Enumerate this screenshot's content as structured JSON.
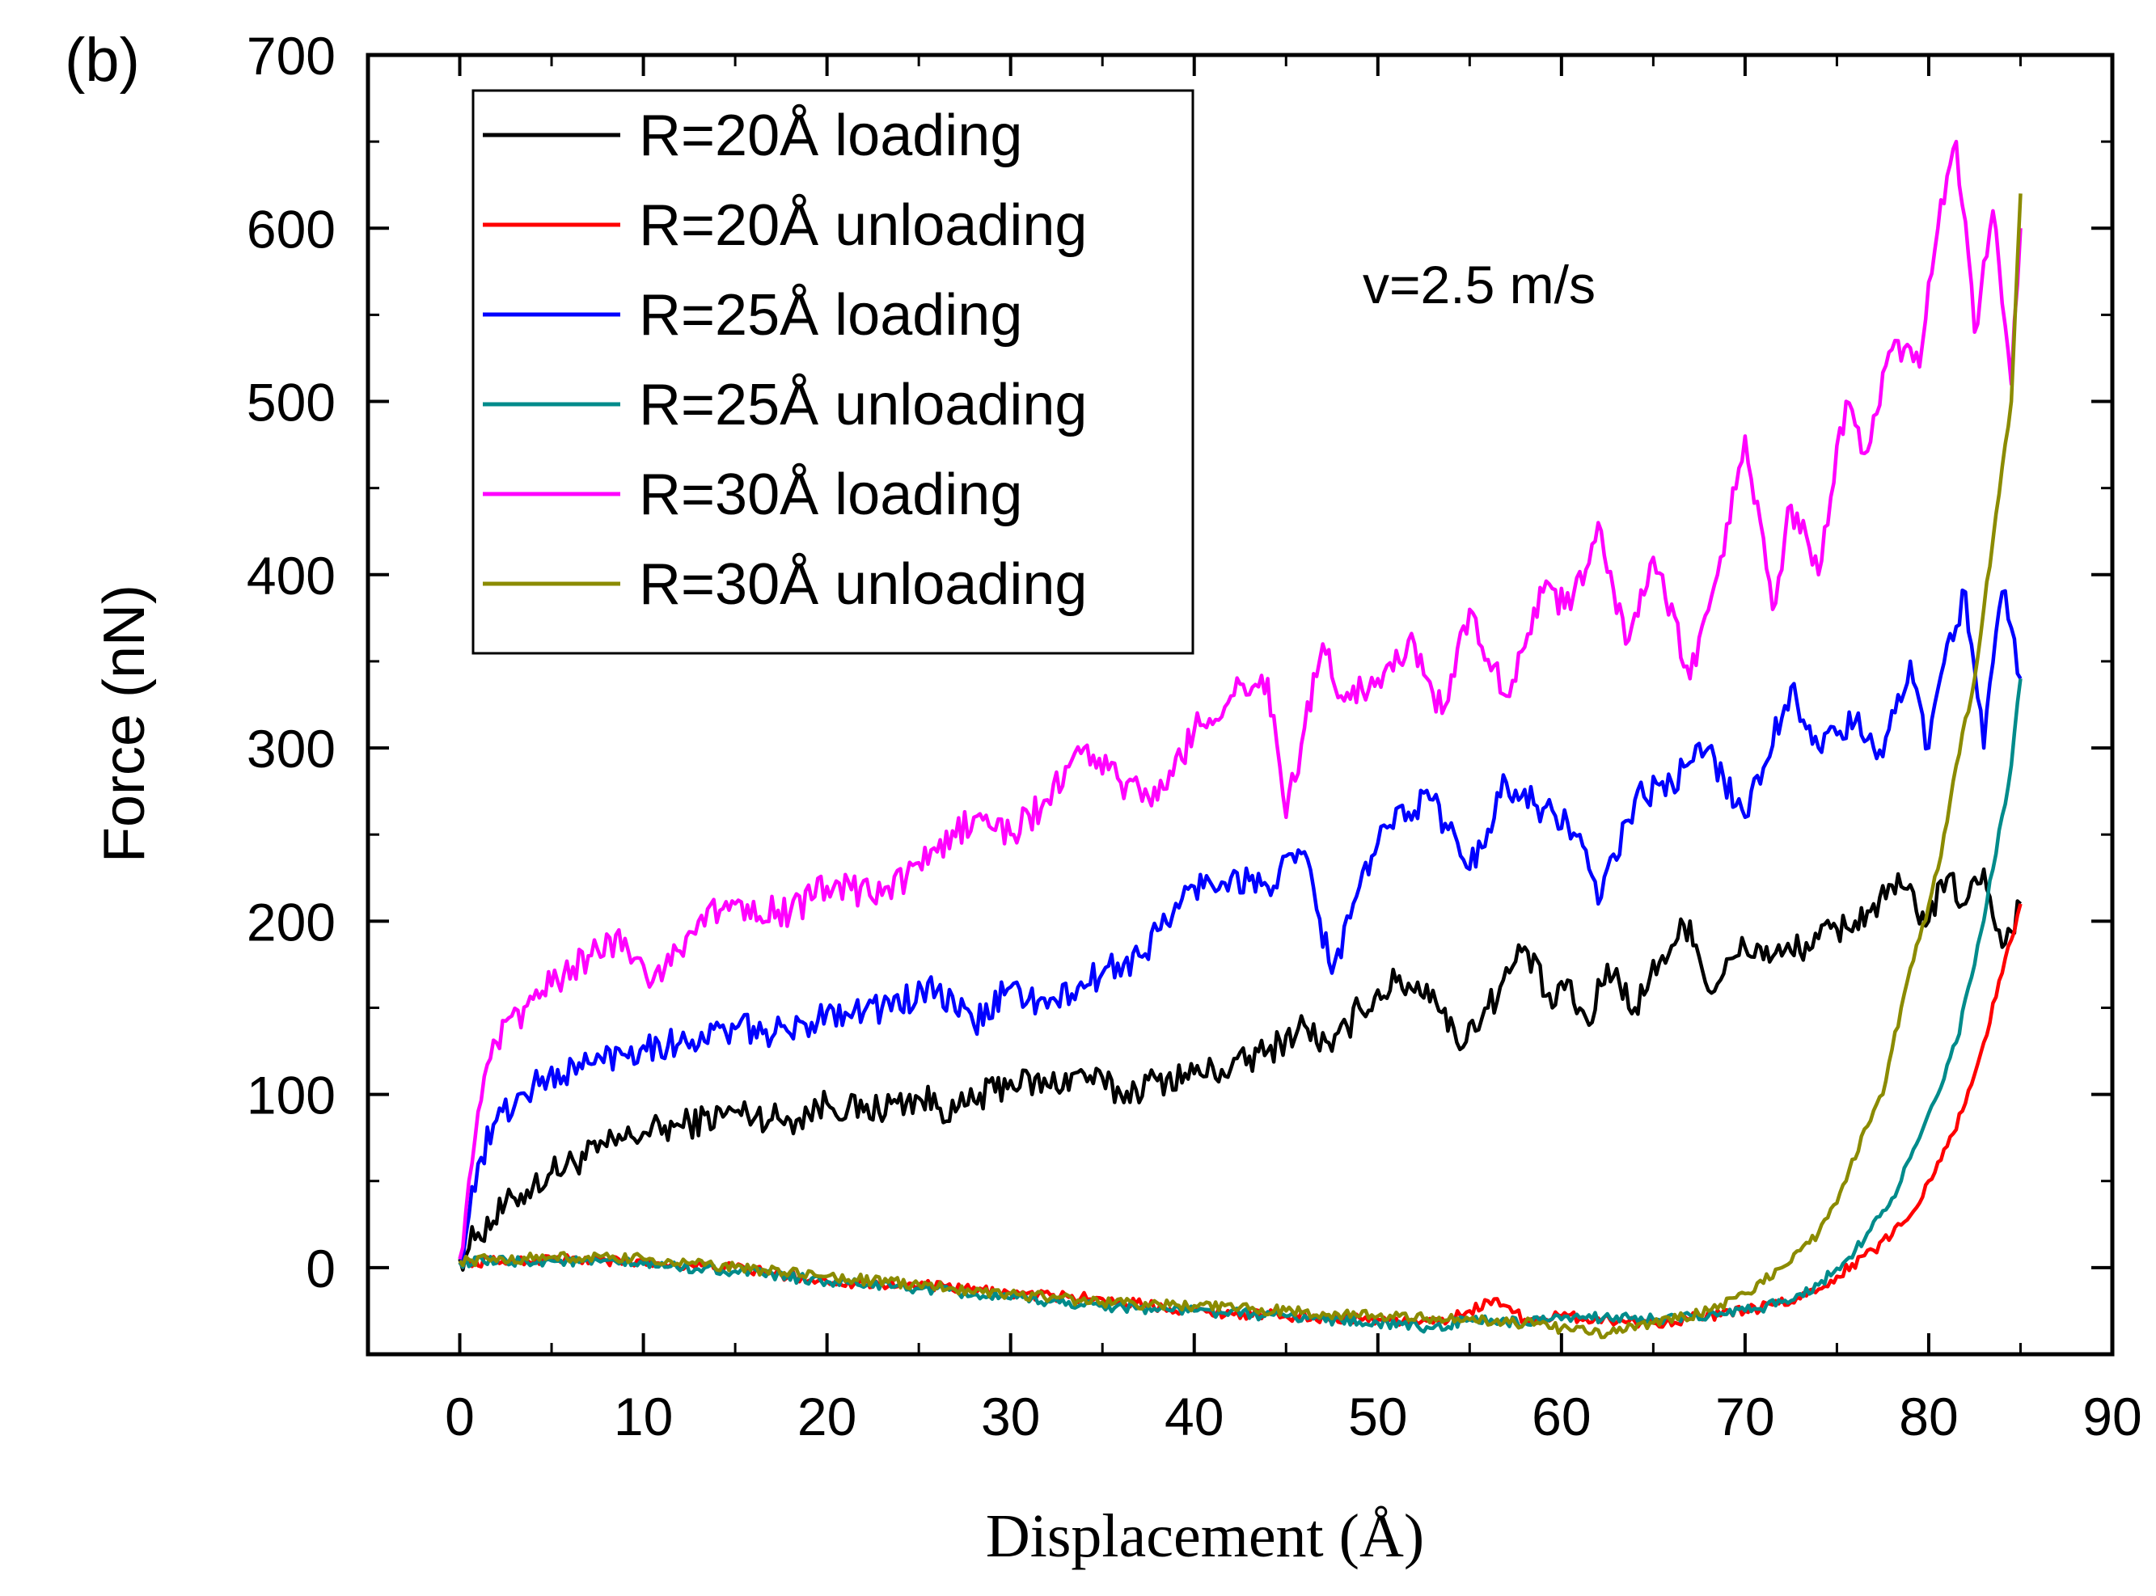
{
  "chart_data": {
    "type": "line",
    "panel_label": "(b)",
    "annotation": "v=2.5 m/s",
    "xlabel": "Displacement (Å)",
    "ylabel": "Force (nN)",
    "xlim": [
      -5,
      90
    ],
    "ylim": [
      -50,
      700
    ],
    "xticks": [
      0,
      10,
      20,
      30,
      40,
      50,
      60,
      70,
      80,
      90
    ],
    "yticks": [
      0,
      100,
      200,
      300,
      400,
      500,
      600,
      700
    ],
    "grid": false,
    "legend_position": "top-left",
    "series": [
      {
        "name": "R=20Å loading",
        "color": "#000000",
        "x": [
          0,
          1,
          3,
          5,
          8,
          10,
          12,
          15,
          18,
          20,
          22,
          25,
          27,
          30,
          32,
          34,
          36,
          38,
          40,
          42,
          44,
          46,
          47.5,
          49,
          51,
          53,
          54.3,
          56,
          58,
          59.5,
          60,
          61.5,
          62.5,
          64,
          65.5,
          67,
          68,
          70,
          72,
          74,
          76,
          78.5,
          80,
          81,
          82,
          83,
          84,
          85
        ],
        "y": [
          5,
          20,
          40,
          55,
          70,
          78,
          82,
          90,
          85,
          95,
          90,
          98,
          90,
          108,
          105,
          112,
          100,
          108,
          112,
          115,
          125,
          140,
          125,
          150,
          165,
          160,
          130,
          150,
          185,
          150,
          165,
          140,
          175,
          150,
          180,
          200,
          160,
          185,
          180,
          190,
          200,
          220,
          200,
          225,
          210,
          230,
          185,
          210
        ]
      },
      {
        "name": "R=20Å unloading",
        "color": "#ff0000",
        "x": [
          0,
          5,
          10,
          15,
          20,
          25,
          30,
          35,
          40,
          45,
          50,
          53,
          55,
          56.5,
          58,
          60,
          65,
          70,
          73,
          75,
          77,
          79,
          80,
          81,
          82,
          83,
          84,
          85
        ],
        "y": [
          3,
          5,
          3,
          0,
          -8,
          -10,
          -15,
          -18,
          -25,
          -28,
          -30,
          -32,
          -25,
          -18,
          -30,
          -28,
          -32,
          -25,
          -18,
          -5,
          10,
          30,
          50,
          70,
          95,
          130,
          170,
          210
        ]
      },
      {
        "name": "R=25Å loading",
        "color": "#0000ff",
        "x": [
          0,
          0.5,
          1,
          2,
          4,
          7,
          10,
          12,
          15,
          18,
          20,
          23,
          26,
          28,
          30,
          32,
          35,
          37,
          40,
          42,
          44,
          46,
          47.5,
          49,
          51,
          53,
          55,
          57,
          59,
          61,
          62,
          64,
          66,
          68,
          70,
          72.5,
          74,
          76,
          77.5,
          79,
          80,
          81,
          82,
          83,
          84,
          85
        ],
        "y": [
          5,
          30,
          60,
          85,
          105,
          118,
          128,
          130,
          138,
          135,
          148,
          150,
          160,
          140,
          162,
          150,
          170,
          180,
          220,
          225,
          220,
          240,
          170,
          220,
          265,
          270,
          230,
          280,
          265,
          250,
          210,
          270,
          280,
          300,
          260,
          335,
          300,
          315,
          295,
          350,
          300,
          360,
          390,
          300,
          390,
          340
        ]
      },
      {
        "name": "R=25Å unloading",
        "color": "#008b8b",
        "x": [
          0,
          5,
          10,
          15,
          20,
          25,
          30,
          35,
          40,
          45,
          50,
          53,
          55,
          58,
          60,
          63,
          65,
          68,
          70,
          72,
          74,
          76,
          78,
          79.5,
          80.5,
          81.5,
          82.5,
          83.5,
          84.5,
          85
        ],
        "y": [
          3,
          4,
          2,
          -2,
          -8,
          -12,
          -18,
          -22,
          -25,
          -28,
          -32,
          -35,
          -30,
          -32,
          -30,
          -28,
          -30,
          -28,
          -25,
          -20,
          -10,
          10,
          40,
          75,
          100,
          130,
          175,
          230,
          290,
          340
        ]
      },
      {
        "name": "R=30Å loading",
        "color": "#ff00ff",
        "x": [
          0,
          0.5,
          1,
          2,
          4,
          7,
          9,
          10.5,
          13,
          15,
          18,
          20,
          23,
          26,
          28,
          30,
          32,
          34,
          36,
          38,
          40,
          42,
          44,
          45,
          47,
          48,
          50,
          52,
          53.5,
          55,
          57,
          59,
          60.5,
          62,
          63.5,
          65,
          67,
          68.5,
          70,
          71.5,
          72.5,
          74,
          75.5,
          76.5,
          78,
          79.5,
          80.5,
          81.5,
          82.5,
          83.5,
          84.5,
          85
        ],
        "y": [
          5,
          50,
          90,
          130,
          155,
          180,
          190,
          165,
          200,
          210,
          205,
          220,
          215,
          240,
          260,
          250,
          270,
          300,
          280,
          270,
          310,
          330,
          340,
          260,
          360,
          330,
          340,
          360,
          320,
          380,
          330,
          390,
          380,
          430,
          360,
          410,
          340,
          400,
          480,
          380,
          440,
          400,
          500,
          470,
          530,
          520,
          600,
          650,
          540,
          610,
          510,
          600
        ]
      },
      {
        "name": "R=30Å unloading",
        "color": "#8b8b00",
        "x": [
          0,
          5,
          10,
          15,
          20,
          25,
          30,
          35,
          40,
          45,
          50,
          55,
          58,
          60,
          62.5,
          65,
          68,
          70,
          72,
          74,
          75.5,
          76.5,
          77.5,
          78.5,
          79.5,
          80.5,
          81.5,
          82.5,
          83.5,
          84.5,
          85
        ],
        "y": [
          4,
          6,
          5,
          0,
          -5,
          -10,
          -15,
          -20,
          -22,
          -25,
          -28,
          -30,
          -32,
          -35,
          -38,
          -32,
          -25,
          -15,
          0,
          20,
          50,
          80,
          100,
          150,
          190,
          230,
          290,
          340,
          420,
          500,
          620
        ]
      }
    ]
  }
}
